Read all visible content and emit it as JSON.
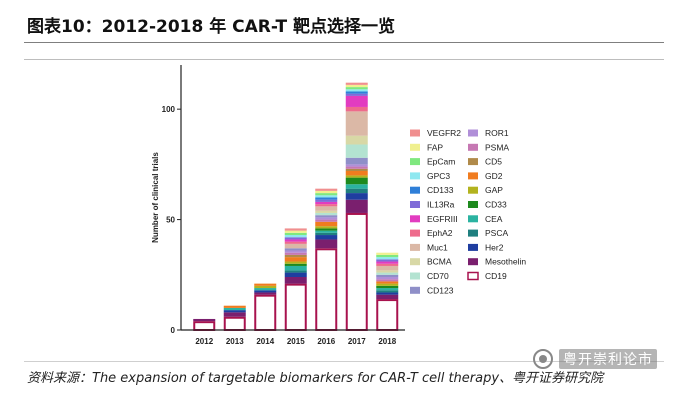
{
  "title": "图表10：2012-2018 年 CAR-T 靶点选择一览",
  "source": "资料来源：The expansion of targetable biomarkers for CAR-T cell therapy、粤开证券研究院",
  "watermark": {
    "text": "粤开崇利论市",
    "icon": "wechat-official-account-icon"
  },
  "chart_data": {
    "type": "bar",
    "stacked": true,
    "title": "",
    "xlabel": "",
    "ylabel": "Number of clinical trials",
    "ylim": [
      0,
      120
    ],
    "yticks": [
      0,
      50,
      100
    ],
    "categories": [
      "2012",
      "2013",
      "2014",
      "2015",
      "2016",
      "2017",
      "2018"
    ],
    "legend_position": "right",
    "series": [
      {
        "name": "CD19",
        "color": "#ffffff",
        "edge": "#a8124e",
        "values": [
          4,
          6,
          16,
          21,
          37,
          53,
          14
        ]
      },
      {
        "name": "Mesothelin",
        "color": "#7a1f6e",
        "values": [
          1,
          2,
          1,
          3,
          4,
          6,
          2
        ]
      },
      {
        "name": "Her2",
        "color": "#1f3ea0",
        "values": [
          0,
          1,
          1,
          2,
          2,
          3,
          1
        ]
      },
      {
        "name": "PSCA",
        "color": "#1f7f7f",
        "values": [
          0,
          0,
          0,
          1,
          1,
          2,
          1
        ]
      },
      {
        "name": "CEA",
        "color": "#2bb3a1",
        "values": [
          0,
          1,
          1,
          2,
          1,
          2,
          1
        ]
      },
      {
        "name": "CD33",
        "color": "#1e8a1e",
        "values": [
          0,
          0,
          0,
          1,
          1,
          3,
          1
        ]
      },
      {
        "name": "GAP",
        "color": "#b3b31f",
        "values": [
          0,
          0,
          1,
          1,
          1,
          1,
          1
        ]
      },
      {
        "name": "GD2",
        "color": "#f07c1f",
        "values": [
          0,
          1,
          1,
          2,
          2,
          2,
          1
        ]
      },
      {
        "name": "CD5",
        "color": "#b08a4a",
        "values": [
          0,
          0,
          0,
          1,
          0,
          1,
          0
        ]
      },
      {
        "name": "PSMA",
        "color": "#c678b3",
        "values": [
          0,
          0,
          0,
          1,
          1,
          1,
          1
        ]
      },
      {
        "name": "ROR1",
        "color": "#b08fd8",
        "values": [
          0,
          0,
          0,
          1,
          1,
          1,
          1
        ]
      },
      {
        "name": "CD123",
        "color": "#8f8fc8",
        "values": [
          0,
          0,
          0,
          1,
          1,
          3,
          1
        ]
      },
      {
        "name": "CD70",
        "color": "#b3e3d1",
        "values": [
          0,
          0,
          0,
          0,
          1,
          6,
          1
        ]
      },
      {
        "name": "BCMA",
        "color": "#d8d8a6",
        "values": [
          0,
          0,
          0,
          0,
          1,
          4,
          1
        ]
      },
      {
        "name": "Muc1",
        "color": "#dbb8a6",
        "values": [
          0,
          0,
          0,
          2,
          2,
          11,
          2
        ]
      },
      {
        "name": "EphA2",
        "color": "#ee6b8c",
        "values": [
          0,
          0,
          0,
          1,
          1,
          2,
          1
        ]
      },
      {
        "name": "EGFRIII",
        "color": "#e23cc0",
        "values": [
          0,
          0,
          0,
          1,
          1,
          5,
          1
        ]
      },
      {
        "name": "IL13Ra",
        "color": "#7f6bd8",
        "values": [
          0,
          0,
          0,
          1,
          1,
          1,
          1
        ]
      },
      {
        "name": "CD133",
        "color": "#2f7fd8",
        "values": [
          0,
          0,
          0,
          0,
          1,
          1,
          0
        ]
      },
      {
        "name": "GPC3",
        "color": "#8ee8f0",
        "values": [
          0,
          0,
          0,
          1,
          1,
          1,
          1
        ]
      },
      {
        "name": "EpCam",
        "color": "#7fe87f",
        "values": [
          0,
          0,
          0,
          1,
          1,
          1,
          1
        ]
      },
      {
        "name": "FAP",
        "color": "#f0f08f",
        "values": [
          0,
          0,
          0,
          1,
          1,
          1,
          1
        ]
      },
      {
        "name": "VEGFR2",
        "color": "#f08f8f",
        "values": [
          0,
          0,
          0,
          1,
          1,
          1,
          0
        ]
      }
    ],
    "legend_columns": [
      [
        "VEGFR2",
        "FAP",
        "EpCam",
        "GPC3",
        "CD133",
        "IL13Ra",
        "EGFRIII",
        "EphA2",
        "Muc1",
        "BCMA",
        "CD70",
        "CD123"
      ],
      [
        "ROR1",
        "PSMA",
        "CD5",
        "GD2",
        "GAP",
        "CD33",
        "CEA",
        "PSCA",
        "Her2",
        "Mesothelin",
        "CD19"
      ]
    ]
  }
}
